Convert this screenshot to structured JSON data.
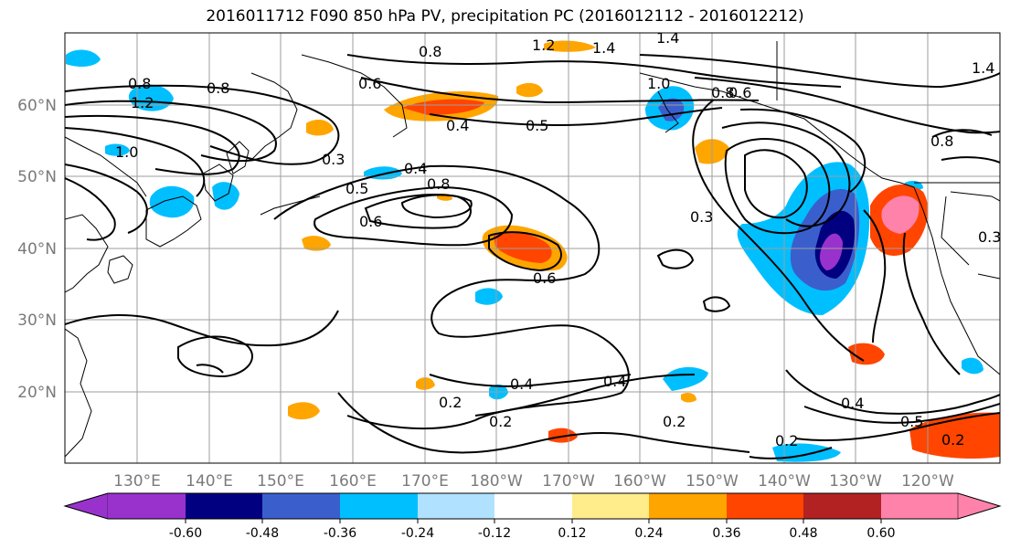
{
  "title": "2016011712 F090 850 hPa PV, precipitation PC (2016012112 - 2016012212)",
  "map": {
    "lon_ticks": [
      "130°E",
      "140°E",
      "150°E",
      "160°E",
      "170°E",
      "180°W",
      "170°W",
      "160°W",
      "150°W",
      "140°W",
      "130°W",
      "120°W"
    ],
    "lat_ticks": [
      "60°N",
      "50°N",
      "40°N",
      "30°N",
      "20°N"
    ],
    "contour_labels": [
      "0.8",
      "1.2",
      "0.8",
      "1.2",
      "1.4",
      "1.4",
      "1.4",
      "0.8",
      "0.8",
      "0.6",
      "0.4",
      "0.5",
      "0.4",
      "0.5",
      "0.6",
      "0.8",
      "0.3",
      "0.6",
      "0.3",
      "0.4",
      "0.2",
      "0.2",
      "0.4",
      "0.2",
      "0.4",
      "0.5",
      "0.2",
      "0.2",
      "0.3",
      "1.0",
      "1.0",
      "0.6",
      "0.8"
    ],
    "colors": {
      "contour": "#000000",
      "grid": "#9e9e9e",
      "coast": "#000000"
    }
  },
  "colorbar": {
    "levels": [
      "-0.60",
      "-0.48",
      "-0.36",
      "-0.24",
      "-0.12",
      "0.12",
      "0.24",
      "0.36",
      "0.48",
      "0.60"
    ],
    "colors": [
      "#9932CC",
      "#000080",
      "#3A5FCD",
      "#00BFFF",
      "#B0E2FF",
      "#FFFFFF",
      "#FFEC8B",
      "#FFA500",
      "#FF4500",
      "#B22222",
      "#FF82AB"
    ]
  }
}
